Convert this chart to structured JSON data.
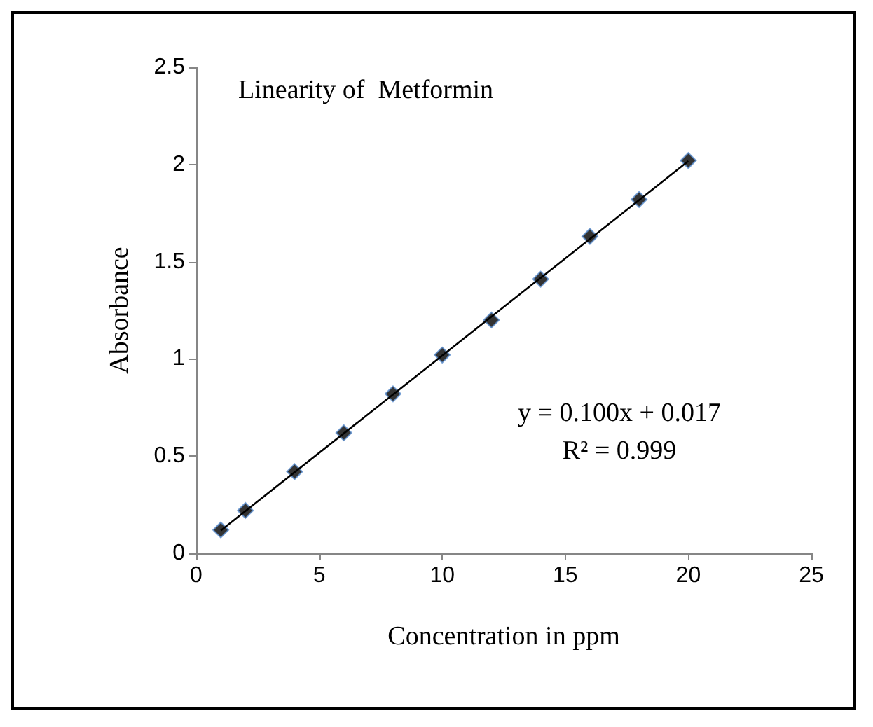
{
  "chart_data": {
    "type": "scatter",
    "title": "Linearity of  Metformin",
    "xlabel": "Concentration in ppm",
    "ylabel": "Absorbance",
    "x": [
      1,
      2,
      4,
      6,
      8,
      10,
      12,
      14,
      16,
      18,
      20
    ],
    "series": [
      {
        "type": "scatter",
        "color": "#000000",
        "values": [
          0.12,
          0.22,
          0.42,
          0.62,
          0.82,
          1.02,
          1.2,
          1.41,
          1.63,
          1.82,
          2.02
        ],
        "marker": "diamond"
      },
      {
        "type": "line",
        "color": "#000000",
        "x": [
          1,
          20
        ],
        "values": [
          0.117,
          2.017
        ],
        "marker": "none",
        "line_style": "solid"
      }
    ],
    "xlim": [
      0,
      25
    ],
    "xticks": [
      0,
      5,
      10,
      15,
      20,
      25
    ],
    "ylim": [
      0,
      2.5
    ],
    "yticks": [
      0,
      0.5,
      1,
      1.5,
      2,
      2.5
    ],
    "grid": false,
    "annotations": [
      "y = 0.100x + 0.017",
      "R² = 0.999"
    ]
  }
}
